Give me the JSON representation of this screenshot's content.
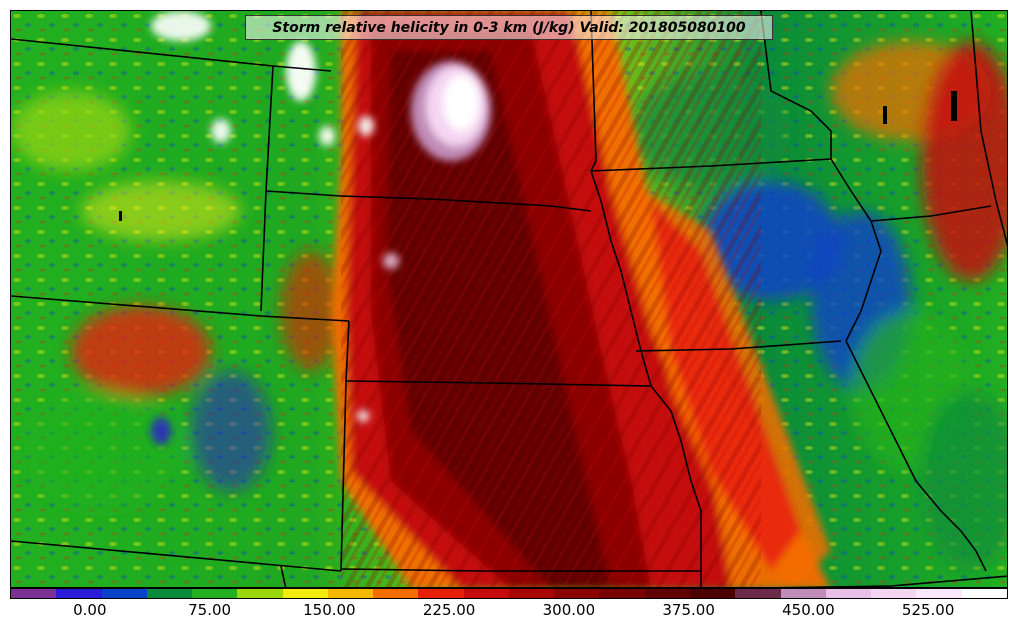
{
  "title": "Storm relative helicity in 0-3 km (J/kg) Valid: 201805080100",
  "colorbar": {
    "colors": [
      "#7b3294",
      "#2a1bd6",
      "#0a42c9",
      "#0a8a3a",
      "#22b020",
      "#9bd60a",
      "#f2ec10",
      "#f5b800",
      "#f56c00",
      "#e61e0a",
      "#c40a0a",
      "#a80404",
      "#8c0202",
      "#780202",
      "#600000",
      "#4a0000",
      "#6a2a48",
      "#c08cb8",
      "#e8bfe6",
      "#f5d6f2",
      "#fbe8fb",
      "#ffffff"
    ],
    "ticks": [
      {
        "label": "0.00",
        "frac": 0.08
      },
      {
        "label": "75.00",
        "frac": 0.2
      },
      {
        "label": "150.00",
        "frac": 0.32
      },
      {
        "label": "225.00",
        "frac": 0.44
      },
      {
        "label": "300.00",
        "frac": 0.56
      },
      {
        "label": "375.00",
        "frac": 0.68
      },
      {
        "label": "450.00",
        "frac": 0.8
      },
      {
        "label": "525.00",
        "frac": 0.92
      }
    ]
  }
}
